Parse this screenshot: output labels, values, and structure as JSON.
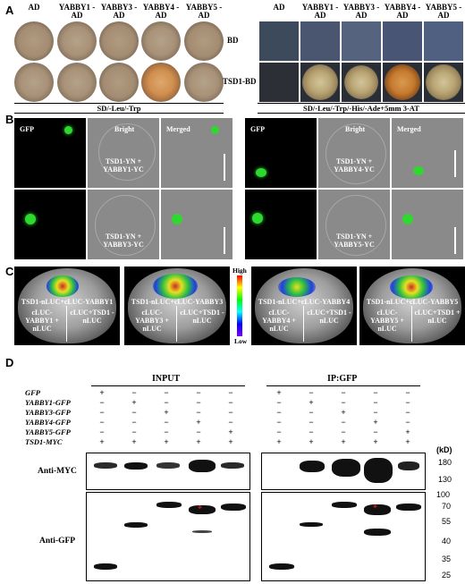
{
  "panelA": {
    "label": "A",
    "left_cols": [
      "AD",
      "YABBY1 - AD",
      "YABBY3 - AD",
      "YABBY4 - AD",
      "YABBY5 - AD"
    ],
    "right_cols": [
      "AD",
      "YABBY1 - AD",
      "YABBY3 - AD",
      "YABBY4 - AD",
      "YABBY5 - AD"
    ],
    "rows": [
      "BD",
      "TSD1-BD"
    ],
    "left_caption": "SD/-Leu/-Trp",
    "right_caption": "SD/-Leu/-Trp/-His/-Ade+5mm 3-AT"
  },
  "panelB": {
    "label": "B",
    "headers": [
      "GFP",
      "Bright",
      "Merged"
    ],
    "pairs": [
      "TSD1-YN + YABBY1-YC",
      "TSD1-YN + YABBY4-YC",
      "TSD1-YN + YABBY3-YC",
      "TSD1-YN + YABBY5-YC"
    ]
  },
  "panelC": {
    "label": "C",
    "scale_high": "High",
    "scale_low": "Low",
    "leaves": [
      {
        "top": "TSD1-nLUC+cLUC-YABBY1",
        "bl": "cLUC-YABBY1 + nLUC",
        "br": "cLUC+TSD1 - nLUC"
      },
      {
        "top": "TSD1-nLUC+cLUC-YABBY3",
        "bl": "cLUC-YABBY3 + nLUC",
        "br": "cLUC+TSD1 - nLUC"
      },
      {
        "top": "TSD1-nLUC+cLUC-YABBY4",
        "bl": "cLUC-YABBY4 + nLUC",
        "br": "cLUC+TSD1 - nLUC"
      },
      {
        "top": "TSD1-nLUC+cLUC-YABBY5",
        "bl": "cLUC-YABBY5 + nLUC",
        "br": "cLUC+TSD1 + nLUC"
      }
    ]
  },
  "panelD": {
    "label": "D",
    "input_title": "INPUT",
    "ip_title": "IP:GFP",
    "rows": [
      {
        "name": "GFP",
        "signs": [
          "+",
          "−",
          "−",
          "−",
          "−"
        ]
      },
      {
        "name": "YABBY1-GFP",
        "signs": [
          "−",
          "+",
          "−",
          "−",
          "−"
        ]
      },
      {
        "name": "YABBY3-GFP",
        "signs": [
          "−",
          "−",
          "+",
          "−",
          "−"
        ]
      },
      {
        "name": "YABBY4-GFP",
        "signs": [
          "−",
          "−",
          "−",
          "+",
          "−"
        ]
      },
      {
        "name": "YABBY5-GFP",
        "signs": [
          "−",
          "−",
          "−",
          "−",
          "+"
        ]
      },
      {
        "name": "TSD1-MYC",
        "signs": [
          "+",
          "+",
          "+",
          "+",
          "+"
        ]
      }
    ],
    "blot1_label": "Anti-MYC",
    "blot2_label": "Anti-GFP",
    "unit": "(kD)",
    "markers_myc": [
      "180",
      "130"
    ],
    "markers_gfp": [
      "100",
      "70",
      "55",
      "40",
      "35",
      "25"
    ]
  }
}
